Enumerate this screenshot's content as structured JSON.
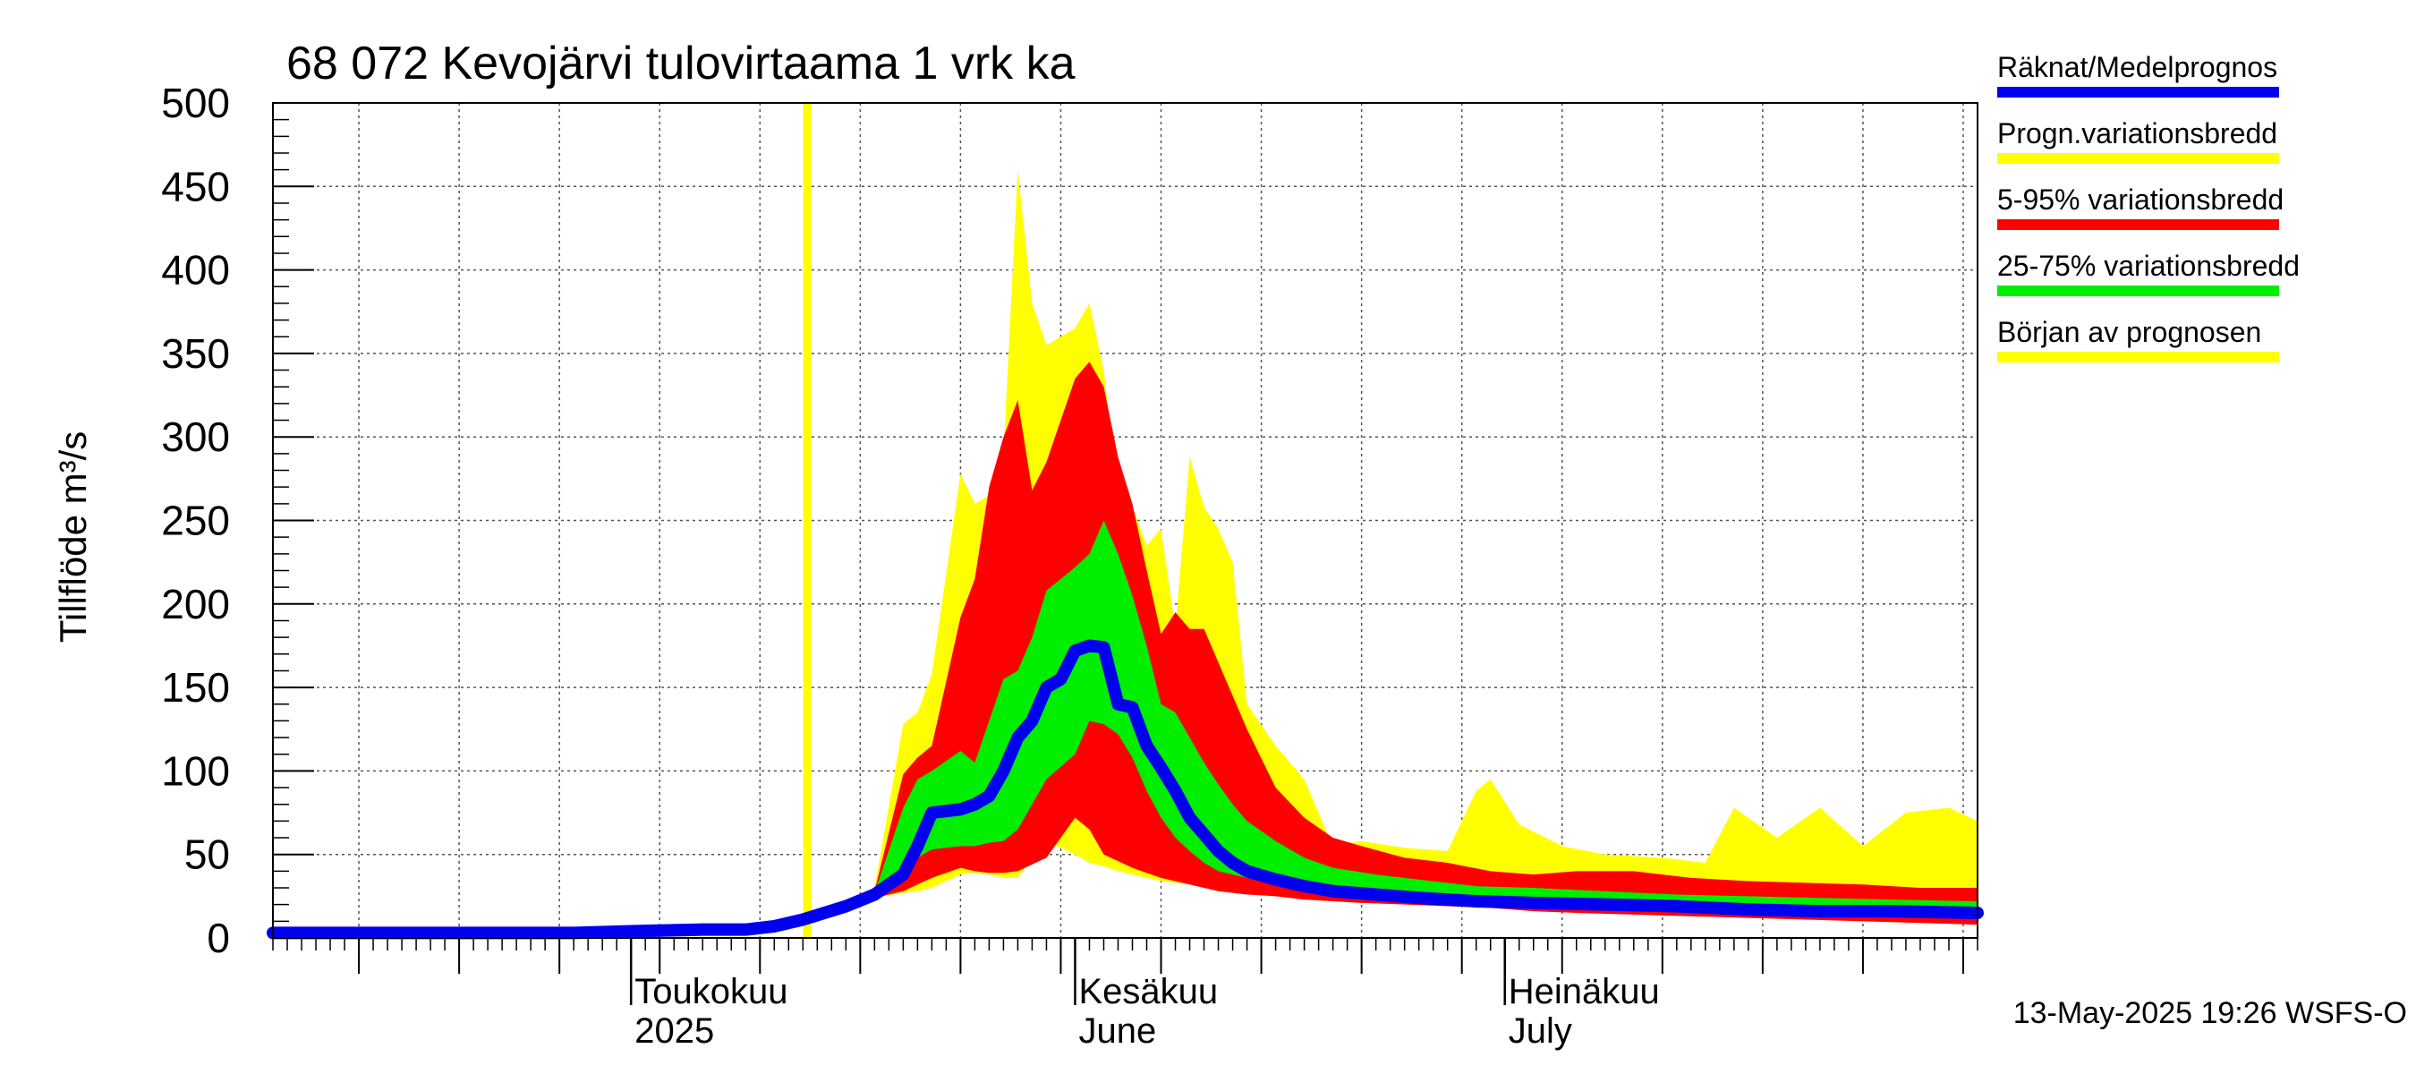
{
  "chart_data": {
    "type": "area",
    "title": "68 072 Kevojärvi tulovirtaama 1 vrk ka",
    "ylabel": "Tillflöde m³/s",
    "xlabel": "",
    "ylim": [
      0,
      500
    ],
    "yticks": [
      0,
      50,
      100,
      150,
      200,
      250,
      300,
      350,
      400,
      450,
      500
    ],
    "xlim": [
      "2025-04-06",
      "2025-08-03"
    ],
    "month_labels": [
      {
        "date": "2025-05-01",
        "line1": "Toukokuu",
        "line2": "2025"
      },
      {
        "date": "2025-06-01",
        "line1": "Kesäkuu",
        "line2": "June"
      },
      {
        "date": "2025-07-01",
        "line1": "Heinäkuu",
        "line2": "July"
      }
    ],
    "forecast_start": "2025-05-13",
    "footer": "13-May-2025 19:26 WSFS-O",
    "grid": true,
    "legend_position": "right",
    "legend": [
      {
        "label": "Räknat/Medelprognos",
        "color": "#0000ee"
      },
      {
        "label": "Progn.variationsbredd",
        "color": "#ffff00"
      },
      {
        "label": "5-95% variationsbredd",
        "color": "#ff0000"
      },
      {
        "label": "25-75% variationsbredd",
        "color": "#00ee00"
      },
      {
        "label": "Början av prognosen",
        "color": "#ffff00"
      }
    ],
    "colors": {
      "prognosis_range": "#ffff00",
      "band_5_95": "#ff0000",
      "band_25_75": "#00ee00",
      "mean": "#0000ee",
      "forecast_start": "#ffff00"
    },
    "observed": {
      "x": [
        "2025-04-06",
        "2025-04-13",
        "2025-04-20",
        "2025-04-27",
        "2025-05-01",
        "2025-05-06",
        "2025-05-09",
        "2025-05-11",
        "2025-05-13",
        "2025-05-16",
        "2025-05-18"
      ],
      "y": [
        3,
        3,
        3,
        3,
        4,
        5,
        5,
        7,
        11,
        19,
        26
      ]
    },
    "prognosis_range": {
      "x": [
        "2025-05-18",
        "2025-05-20",
        "2025-05-21",
        "2025-05-22",
        "2025-05-24",
        "2025-05-25",
        "2025-05-26",
        "2025-05-27",
        "2025-05-28",
        "2025-05-29",
        "2025-05-30",
        "2025-06-01",
        "2025-06-02",
        "2025-06-03",
        "2025-06-04",
        "2025-06-05",
        "2025-06-06",
        "2025-06-07",
        "2025-06-08",
        "2025-06-09",
        "2025-06-10",
        "2025-06-11",
        "2025-06-12",
        "2025-06-13",
        "2025-06-15",
        "2025-06-17",
        "2025-06-19",
        "2025-06-21",
        "2025-06-24",
        "2025-06-27",
        "2025-06-29",
        "2025-06-30",
        "2025-07-02",
        "2025-07-05",
        "2025-07-08",
        "2025-07-12",
        "2025-07-15",
        "2025-07-17",
        "2025-07-20",
        "2025-07-23",
        "2025-07-26",
        "2025-07-29",
        "2025-08-01",
        "2025-08-03"
      ],
      "low": [
        24,
        27,
        28,
        30,
        38,
        39,
        38,
        36,
        36,
        48,
        58,
        50,
        45,
        43,
        40,
        38,
        36,
        34,
        33,
        32,
        30,
        29,
        28,
        27,
        25,
        24,
        22,
        21,
        20,
        19,
        18,
        18,
        17,
        16,
        15,
        14,
        13,
        13,
        12,
        12,
        11,
        10,
        10,
        9
      ],
      "high": [
        30,
        128,
        135,
        158,
        278,
        260,
        265,
        290,
        460,
        380,
        355,
        365,
        380,
        340,
        262,
        258,
        235,
        245,
        185,
        288,
        258,
        245,
        225,
        140,
        115,
        95,
        55,
        58,
        54,
        52,
        88,
        95,
        68,
        55,
        50,
        48,
        45,
        78,
        60,
        78,
        55,
        75,
        78,
        70
      ]
    },
    "band_5_95": {
      "x": [
        "2025-05-18",
        "2025-05-20",
        "2025-05-21",
        "2025-05-22",
        "2025-05-24",
        "2025-05-25",
        "2025-05-26",
        "2025-05-27",
        "2025-05-28",
        "2025-05-29",
        "2025-05-30",
        "2025-06-01",
        "2025-06-02",
        "2025-06-03",
        "2025-06-04",
        "2025-06-05",
        "2025-06-06",
        "2025-06-07",
        "2025-06-08",
        "2025-06-09",
        "2025-06-10",
        "2025-06-11",
        "2025-06-12",
        "2025-06-13",
        "2025-06-15",
        "2025-06-17",
        "2025-06-19",
        "2025-06-21",
        "2025-06-24",
        "2025-06-27",
        "2025-06-30",
        "2025-07-03",
        "2025-07-06",
        "2025-07-10",
        "2025-07-14",
        "2025-07-18",
        "2025-07-22",
        "2025-07-26",
        "2025-07-30",
        "2025-08-03"
      ],
      "low": [
        24,
        28,
        32,
        36,
        42,
        40,
        39,
        39,
        40,
        44,
        48,
        72,
        65,
        50,
        46,
        42,
        39,
        36,
        34,
        32,
        30,
        28,
        27,
        26,
        25,
        23,
        22,
        21,
        20,
        19,
        18,
        16,
        15,
        14,
        13,
        12,
        11,
        10,
        9,
        8
      ],
      "high": [
        28,
        98,
        108,
        115,
        192,
        215,
        270,
        300,
        322,
        268,
        285,
        335,
        345,
        330,
        288,
        260,
        220,
        182,
        195,
        185,
        185,
        165,
        145,
        125,
        90,
        72,
        60,
        55,
        48,
        45,
        40,
        38,
        40,
        40,
        36,
        34,
        33,
        32,
        30,
        30
      ]
    },
    "band_25_75": {
      "x": [
        "2025-05-18",
        "2025-05-20",
        "2025-05-21",
        "2025-05-22",
        "2025-05-24",
        "2025-05-25",
        "2025-05-26",
        "2025-05-27",
        "2025-05-28",
        "2025-05-29",
        "2025-05-30",
        "2025-06-01",
        "2025-06-02",
        "2025-06-03",
        "2025-06-04",
        "2025-06-05",
        "2025-06-06",
        "2025-06-07",
        "2025-06-08",
        "2025-06-09",
        "2025-06-10",
        "2025-06-11",
        "2025-06-12",
        "2025-06-13",
        "2025-06-15",
        "2025-06-17",
        "2025-06-19",
        "2025-06-22",
        "2025-06-25",
        "2025-06-29",
        "2025-07-03",
        "2025-07-08",
        "2025-07-13",
        "2025-07-18",
        "2025-07-23",
        "2025-07-28",
        "2025-08-03"
      ],
      "low": [
        25,
        40,
        48,
        53,
        55,
        55,
        57,
        58,
        65,
        80,
        95,
        110,
        130,
        128,
        122,
        108,
        88,
        72,
        60,
        52,
        45,
        40,
        38,
        36,
        32,
        29,
        27,
        25,
        23,
        21,
        19,
        18,
        17,
        16,
        15,
        14,
        13
      ],
      "high": [
        27,
        78,
        95,
        100,
        112,
        105,
        130,
        155,
        160,
        180,
        208,
        222,
        230,
        250,
        230,
        205,
        175,
        140,
        135,
        120,
        105,
        92,
        80,
        70,
        58,
        48,
        42,
        38,
        35,
        31,
        30,
        28,
        26,
        25,
        24,
        23,
        22
      ]
    },
    "mean": {
      "x": [
        "2025-05-18",
        "2025-05-20",
        "2025-05-21",
        "2025-05-22",
        "2025-05-24",
        "2025-05-25",
        "2025-05-26",
        "2025-05-27",
        "2025-05-28",
        "2025-05-29",
        "2025-05-30",
        "2025-05-31",
        "2025-06-01",
        "2025-06-02",
        "2025-06-03",
        "2025-06-04",
        "2025-06-05",
        "2025-06-06",
        "2025-06-07",
        "2025-06-08",
        "2025-06-09",
        "2025-06-10",
        "2025-06-11",
        "2025-06-12",
        "2025-06-13",
        "2025-06-15",
        "2025-06-17",
        "2025-06-19",
        "2025-06-22",
        "2025-06-25",
        "2025-06-29",
        "2025-07-03",
        "2025-07-08",
        "2025-07-13",
        "2025-07-18",
        "2025-07-23",
        "2025-07-28",
        "2025-08-03"
      ],
      "y": [
        26,
        38,
        55,
        75,
        77,
        80,
        85,
        100,
        120,
        130,
        150,
        155,
        172,
        175,
        174,
        140,
        138,
        115,
        102,
        88,
        72,
        62,
        52,
        45,
        40,
        35,
        31,
        28,
        26,
        24,
        22,
        21,
        20,
        19,
        17,
        16,
        16,
        15
      ]
    }
  }
}
